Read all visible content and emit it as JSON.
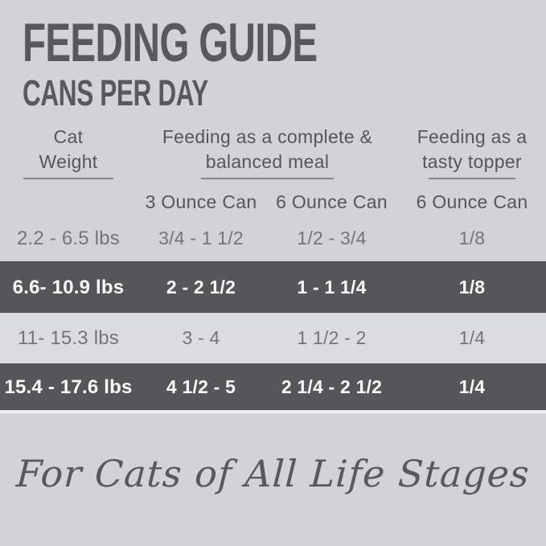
{
  "title": "FEEDING GUIDE",
  "subtitle": "CANS PER DAY",
  "table": {
    "groups": {
      "weight": "Cat\nWeight",
      "complete": "Feeding as a complete &\nbalanced meal",
      "topper": "Feeding as a\ntasty topper"
    },
    "subheaders": {
      "col2": "3 Ounce Can",
      "col3": "6 Ounce Can",
      "col4": "6 Ounce Can"
    },
    "rows": [
      {
        "weight": "2.2 - 6.5 lbs",
        "can3oz": "3/4 - 1 1/2",
        "can6oz": "1/2 - 3/4",
        "topper6oz": "1/8"
      },
      {
        "weight": "6.6- 10.9 lbs",
        "can3oz": "2 - 2 1/2",
        "can6oz": "1 - 1 1/4",
        "topper6oz": "1/8"
      },
      {
        "weight": "11- 15.3 lbs",
        "can3oz": "3 - 4",
        "can6oz": "1 1/2 - 2",
        "topper6oz": "1/4"
      },
      {
        "weight": "15.4 - 17.6 lbs",
        "can3oz": "4 1/2 - 5",
        "can6oz": "2 1/4 - 2 1/2",
        "topper6oz": "1/4"
      }
    ]
  },
  "footer": "For Cats of All Life Stages",
  "colors": {
    "background": "#d2d3d5",
    "dark_row": "#565659",
    "shaded_row": "#dbdcdf",
    "heading_text": "#58595b",
    "body_text": "#737477",
    "dark_row_text": "#fbfbfb",
    "underline": "#85868a"
  }
}
